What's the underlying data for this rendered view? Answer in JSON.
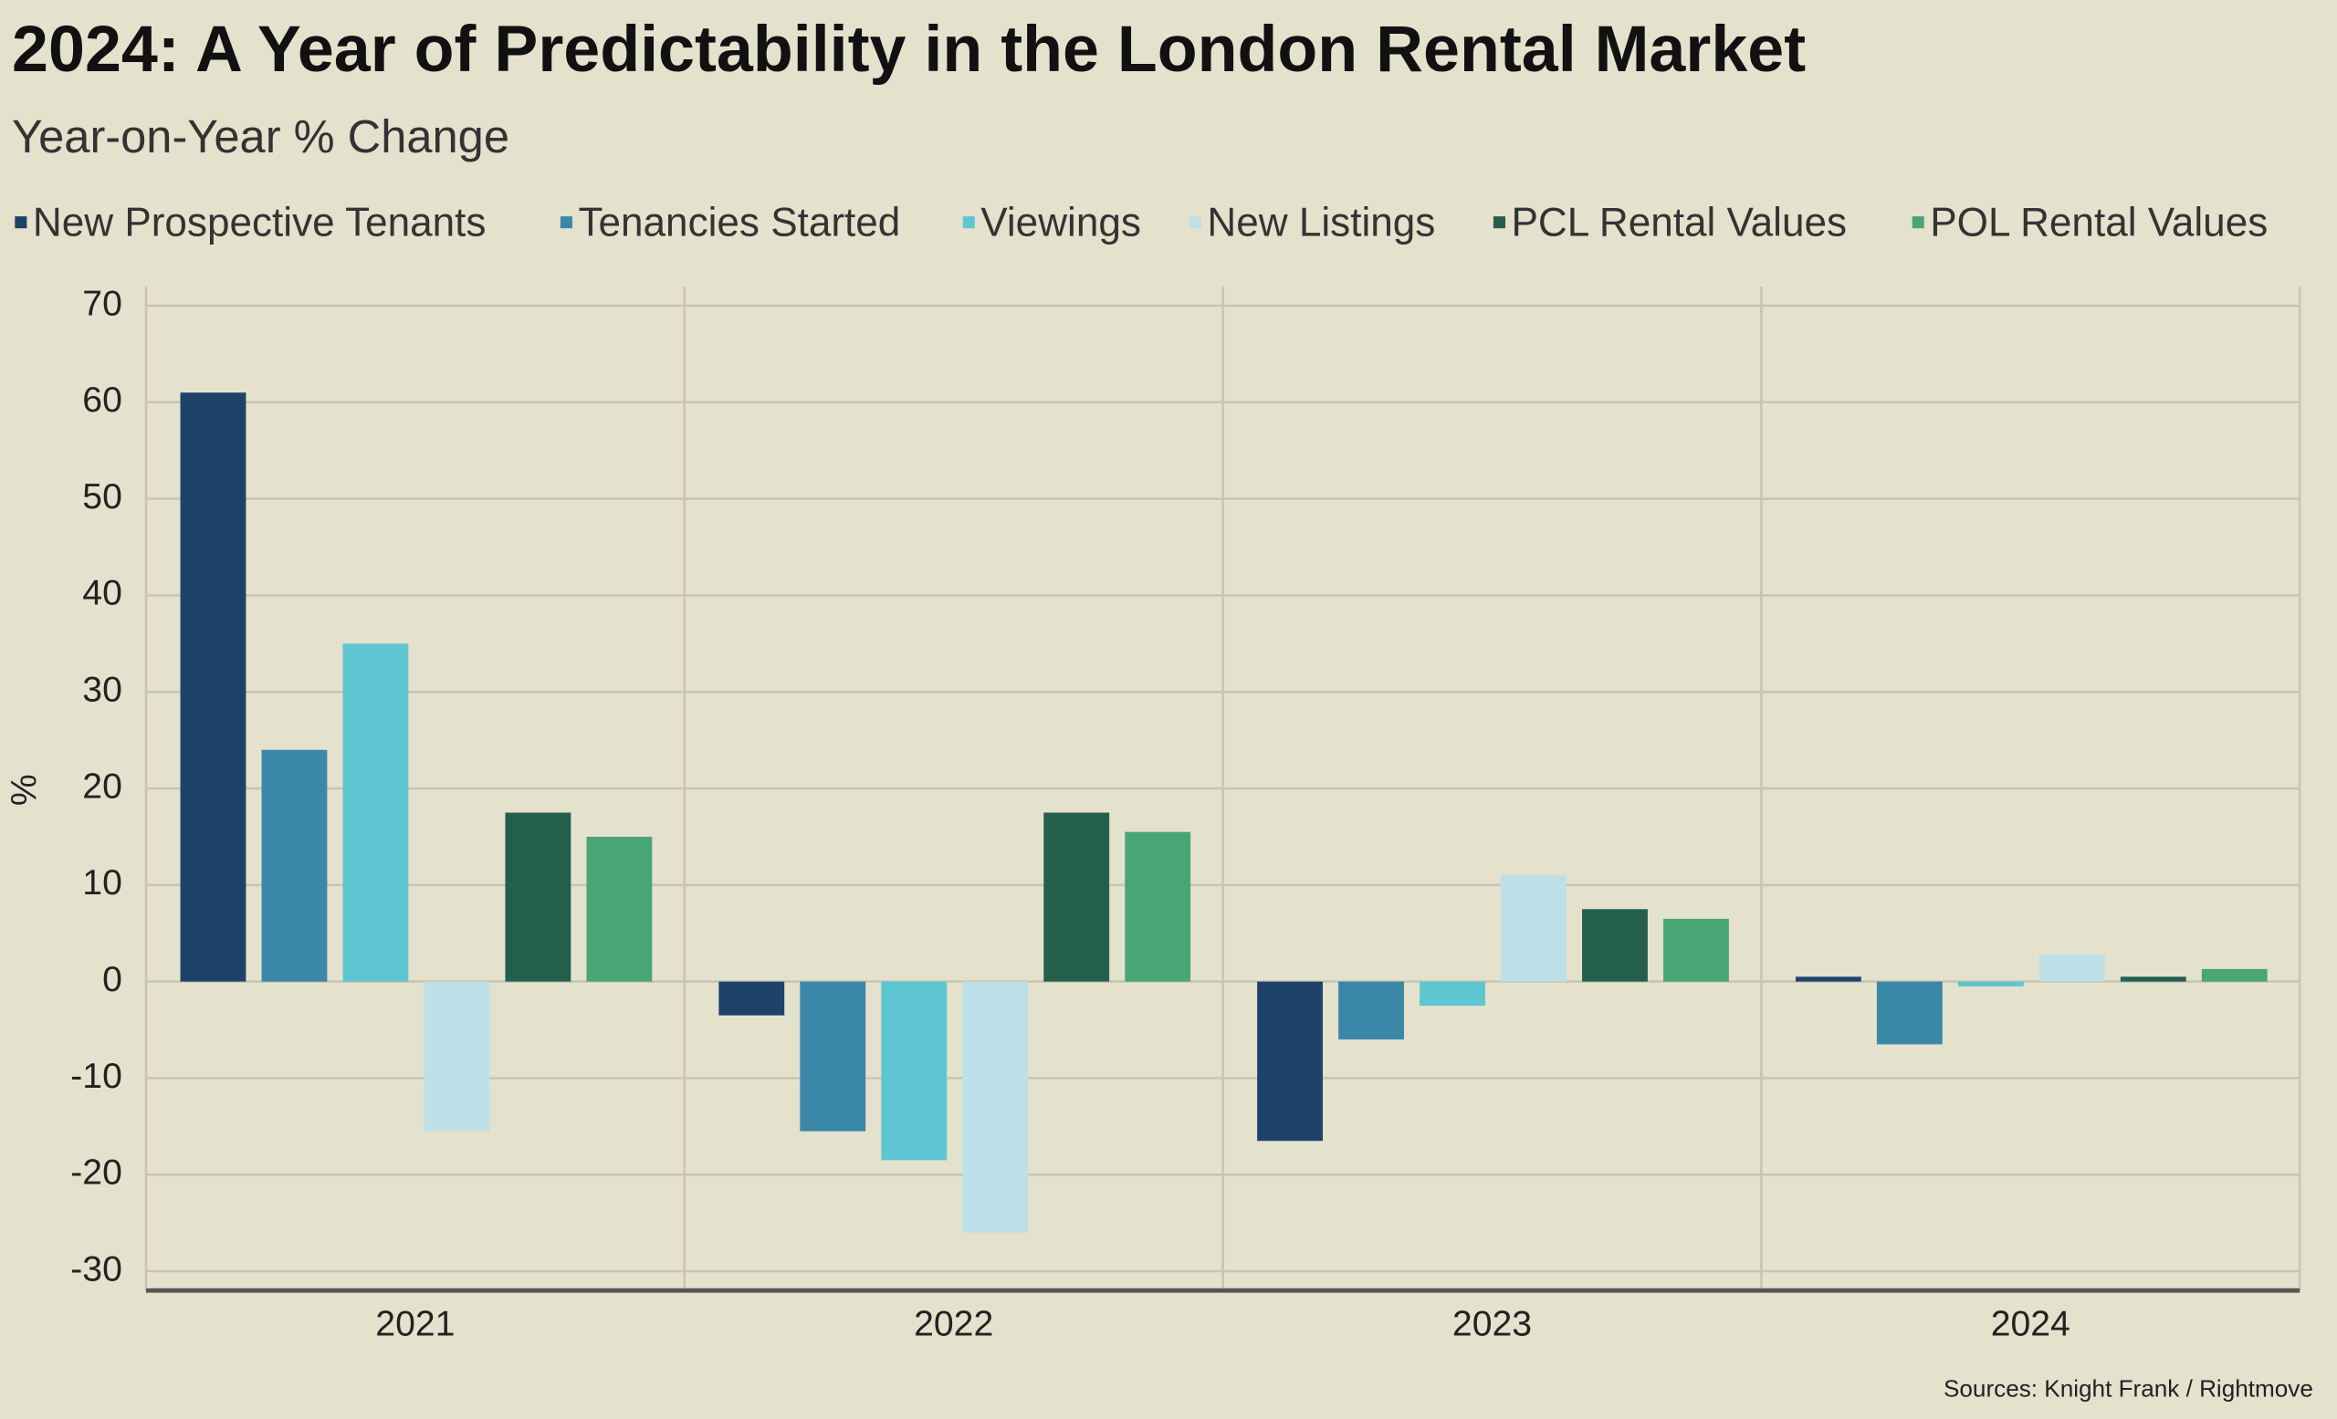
{
  "chart_data": {
    "type": "bar",
    "title": "2024: A Year of Predictability in the London Rental Market",
    "subtitle": "Year-on-Year % Change",
    "y_label": "%",
    "source": "Sources: Knight Frank / Rightmove",
    "categories": [
      "2021",
      "2022",
      "2023",
      "2024"
    ],
    "series": [
      {
        "name": "New Prospective Tenants",
        "color": "#1f426b",
        "values": [
          61,
          -3.5,
          -16.5,
          0.5
        ]
      },
      {
        "name": "Tenancies Started",
        "color": "#3a87a8",
        "values": [
          24,
          -15.5,
          -6,
          -6.5
        ]
      },
      {
        "name": "Viewings",
        "color": "#5ec6d1",
        "values": [
          35,
          -18.5,
          -2.5,
          -0.5
        ]
      },
      {
        "name": "New Listings",
        "color": "#bde0e8",
        "values": [
          -15.5,
          -26,
          11,
          2.8
        ]
      },
      {
        "name": "PCL Rental Values",
        "color": "#245f4d",
        "values": [
          17.5,
          17.5,
          7.5,
          0.5
        ]
      },
      {
        "name": "POL Rental Values",
        "color": "#49a576",
        "values": [
          15,
          15.5,
          6.5,
          1.3
        ]
      }
    ],
    "ylim": [
      -32,
      72
    ],
    "yticks": [
      -30,
      -20,
      -10,
      0,
      10,
      20,
      30,
      40,
      50,
      60,
      70
    ],
    "grid": true
  }
}
